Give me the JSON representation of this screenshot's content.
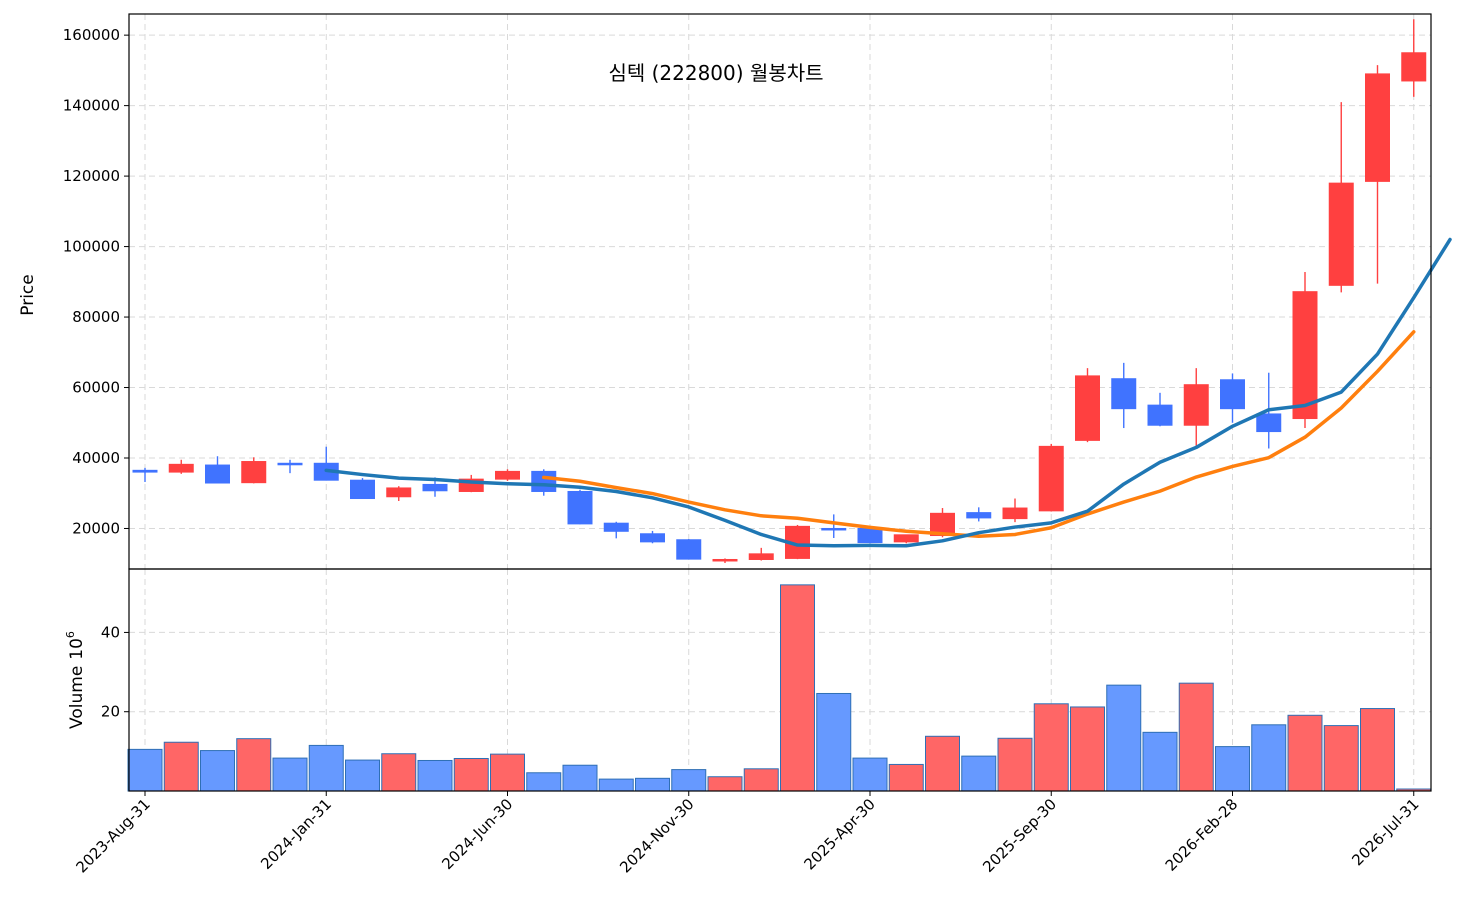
{
  "chart_data": {
    "type": "candlestick",
    "title": "심텍 (222800) 월봉차트",
    "price_panel": {
      "ylabel": "Price",
      "ylim": [
        8500,
        166000
      ],
      "yticks": [
        20000,
        40000,
        60000,
        80000,
        100000,
        120000,
        140000,
        160000
      ],
      "grid": true
    },
    "volume_panel": {
      "ylabel": "Volume",
      "scale_label": "10",
      "scale_exponent": "6",
      "ylim": [
        0,
        56
      ],
      "yticks": [
        20,
        40
      ],
      "grid": true
    },
    "x_tick_labels": [
      "2023-Aug-31",
      "2024-Jan-31",
      "2024-Jun-30",
      "2024-Nov-30",
      "2025-Apr-30",
      "2025-Sep-30",
      "2026-Feb-28",
      "2026-Jul-31"
    ],
    "x_tick_indices": [
      0,
      5,
      10,
      15,
      20,
      25,
      30,
      35
    ],
    "colors": {
      "up": "#ff4040",
      "down": "#4073ff",
      "volume_up": "#ff6666",
      "volume_down": "#6699ff",
      "volume_edge": "#2f6fb5",
      "ma_fast": "#1f77b4",
      "ma_slow": "#ff7f0e"
    },
    "candles": [
      {
        "o": 36500,
        "h": 37200,
        "l": 33200,
        "c": 36000,
        "v": 10.5
      },
      {
        "o": 36000,
        "h": 39500,
        "l": 35500,
        "c": 38200,
        "v": 12.3
      },
      {
        "o": 38000,
        "h": 40500,
        "l": 32800,
        "c": 32900,
        "v": 10.2
      },
      {
        "o": 33000,
        "h": 40200,
        "l": 32800,
        "c": 39000,
        "v": 13.2
      },
      {
        "o": 38500,
        "h": 39500,
        "l": 35700,
        "c": 38300,
        "v": 8.3
      },
      {
        "o": 38500,
        "h": 43200,
        "l": 33600,
        "c": 33700,
        "v": 11.5
      },
      {
        "o": 33700,
        "h": 34300,
        "l": 28400,
        "c": 28500,
        "v": 7.8
      },
      {
        "o": 29000,
        "h": 32000,
        "l": 27800,
        "c": 31500,
        "v": 9.4
      },
      {
        "o": 32500,
        "h": 34500,
        "l": 29000,
        "c": 30700,
        "v": 7.7
      },
      {
        "o": 30500,
        "h": 35200,
        "l": 30300,
        "c": 34000,
        "v": 8.2
      },
      {
        "o": 34000,
        "h": 36800,
        "l": 33500,
        "c": 36200,
        "v": 9.3
      },
      {
        "o": 36200,
        "h": 36800,
        "l": 29300,
        "c": 30500,
        "v": 4.6
      },
      {
        "o": 30500,
        "h": 31000,
        "l": 21200,
        "c": 21300,
        "v": 6.5
      },
      {
        "o": 21500,
        "h": 21900,
        "l": 17200,
        "c": 19200,
        "v": 3.0
      },
      {
        "o": 18500,
        "h": 19300,
        "l": 15800,
        "c": 16200,
        "v": 3.2
      },
      {
        "o": 16800,
        "h": 17000,
        "l": 11200,
        "c": 11300,
        "v": 5.4
      },
      {
        "o": 11000,
        "h": 11500,
        "l": 10200,
        "c": 11200,
        "v": 3.6
      },
      {
        "o": 11200,
        "h": 14500,
        "l": 10900,
        "c": 12800,
        "v": 5.6
      },
      {
        "o": 11500,
        "h": 21000,
        "l": 11300,
        "c": 20600,
        "v": 52.0
      },
      {
        "o": 20000,
        "h": 24000,
        "l": 17300,
        "c": 19800,
        "v": 24.6
      },
      {
        "o": 20000,
        "h": 20300,
        "l": 15800,
        "c": 16000,
        "v": 8.3
      },
      {
        "o": 16200,
        "h": 18200,
        "l": 15800,
        "c": 18200,
        "v": 6.7
      },
      {
        "o": 18000,
        "h": 25800,
        "l": 17500,
        "c": 24300,
        "v": 13.8
      },
      {
        "o": 24500,
        "h": 26000,
        "l": 22000,
        "c": 23000,
        "v": 8.8
      },
      {
        "o": 22800,
        "h": 28500,
        "l": 21800,
        "c": 25800,
        "v": 13.3
      },
      {
        "o": 25000,
        "h": 44000,
        "l": 24800,
        "c": 43300,
        "v": 22.0
      },
      {
        "o": 45000,
        "h": 65500,
        "l": 44500,
        "c": 63300,
        "v": 21.2
      },
      {
        "o": 62500,
        "h": 67000,
        "l": 48500,
        "c": 54000,
        "v": 26.7
      },
      {
        "o": 55000,
        "h": 58500,
        "l": 49000,
        "c": 49300,
        "v": 14.8
      },
      {
        "o": 49300,
        "h": 65500,
        "l": 42700,
        "c": 60800,
        "v": 27.2
      },
      {
        "o": 62200,
        "h": 64000,
        "l": 50000,
        "c": 54000,
        "v": 11.2
      },
      {
        "o": 52500,
        "h": 64200,
        "l": 42700,
        "c": 47500,
        "v": 16.7
      },
      {
        "o": 51200,
        "h": 92800,
        "l": 48500,
        "c": 87200,
        "v": 19.1
      },
      {
        "o": 89000,
        "h": 141000,
        "l": 87000,
        "c": 118000,
        "v": 16.5
      },
      {
        "o": 118500,
        "h": 151500,
        "l": 89500,
        "c": 149000,
        "v": 20.8
      },
      {
        "o": 147000,
        "h": 164500,
        "l": 142500,
        "c": 155000,
        "v": 0.5
      }
    ],
    "ma_fast": {
      "start_index": 5,
      "values": [
        36500,
        35300,
        34300,
        33900,
        33200,
        32700,
        32400,
        31700,
        30500,
        28700,
        26100,
        22300,
        18300,
        15300,
        15100,
        15200,
        15100,
        16500,
        18800,
        20400,
        21600,
        24900,
        32600,
        38800,
        43000,
        49000,
        53700,
        54900,
        58700,
        69500,
        85500,
        102000
      ]
    },
    "ma_slow": {
      "start_index": 11,
      "values": [
        34500,
        33400,
        31600,
        29900,
        27500,
        25300,
        23600,
        22900,
        21600,
        20300,
        19200,
        18500,
        17800,
        18300,
        20200,
        24100,
        27500,
        30600,
        34600,
        37600,
        40100,
        45900,
        54200,
        64600,
        75800
      ]
    }
  }
}
